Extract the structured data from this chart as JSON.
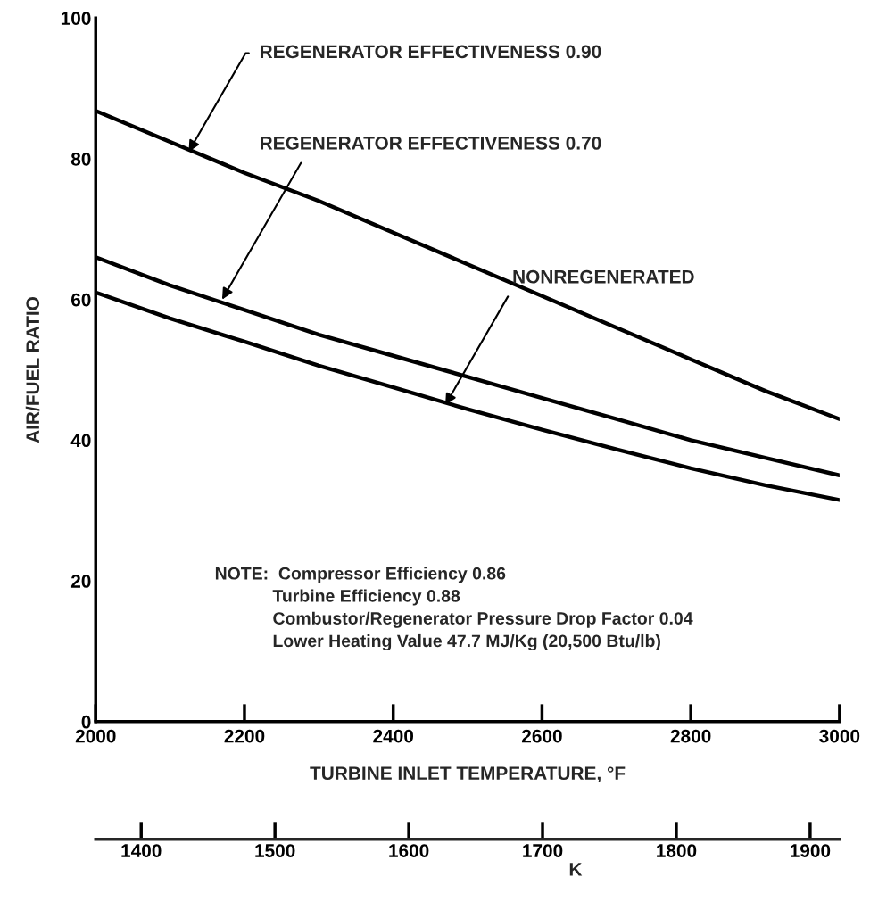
{
  "chart_data": {
    "type": "line",
    "xlabel": "TURBINE INLET TEMPERATURE, °F",
    "ylabel": "AIR/FUEL RATIO",
    "x2label": "K",
    "x": [
      2000,
      2100,
      2200,
      2300,
      2400,
      2500,
      2600,
      2700,
      2800,
      2900,
      3000
    ],
    "series": [
      {
        "color": "#000000",
        "values": [
          86.8,
          82.4,
          78,
          74,
          69.5,
          65,
          60.5,
          56,
          51.5,
          47,
          43
        ]
      },
      {
        "color": "#000000",
        "values": [
          66,
          62,
          58.5,
          55,
          52,
          49,
          46,
          43,
          40,
          37.5,
          35
        ]
      },
      {
        "color": "#000000",
        "values": [
          61,
          57.3,
          54,
          50.6,
          47.5,
          44.4,
          41.5,
          38.7,
          36,
          33.6,
          31.5
        ]
      }
    ],
    "xlim": [
      2000,
      3000
    ],
    "xticks": [
      2000,
      2200,
      2400,
      2600,
      2800,
      3000
    ],
    "ylim": [
      0,
      100
    ],
    "yticks": [
      0,
      20,
      40,
      60,
      80,
      100
    ],
    "x2lim": [
      1366,
      1922
    ],
    "x2ticks": [
      1400,
      1500,
      1600,
      1700,
      1800,
      1900
    ],
    "line_style": "solid",
    "marker": "none",
    "grid": false,
    "legend": false,
    "annotations": [
      {
        "text": "REGENERATOR EFFECTIVENESS 0.90",
        "x": 2125,
        "y": 81
      },
      {
        "text": "REGENERATOR EFFECTIVENESS 0.70",
        "x": 2170,
        "y": 60
      },
      {
        "text": "NONREGENERATED",
        "x": 2470,
        "y": 45
      },
      "NOTE:  Compressor Efficiency 0.86\n            Turbine Efficiency 0.88\n            Combustor/Regenerator Pressure Drop Factor 0.04\n            Lower Heating Value 47.7 MJ/Kg (20,500 Btu/lb)"
    ]
  }
}
